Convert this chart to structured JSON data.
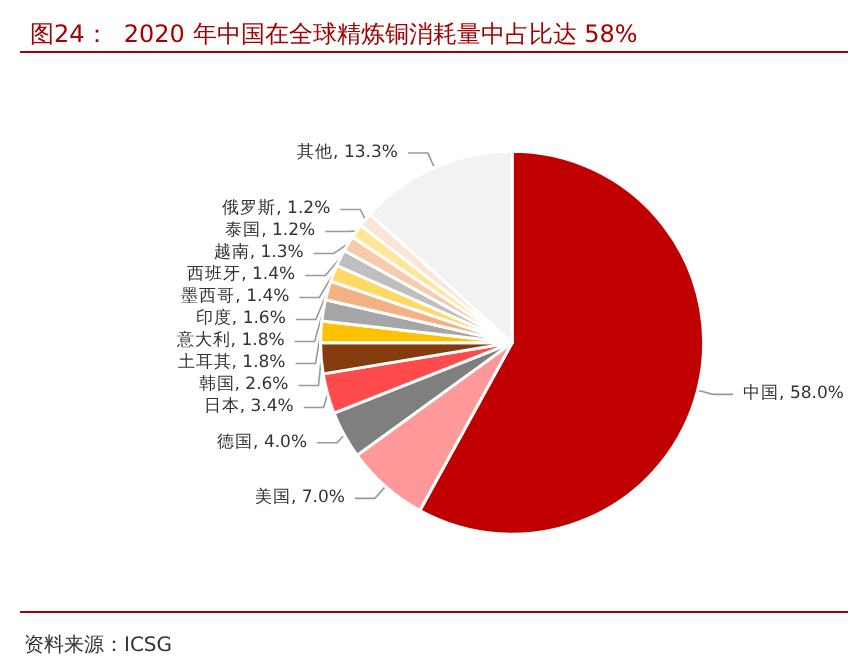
{
  "chart_data": {
    "type": "pie",
    "title": "图24：  2020 年中国在全球精炼铜消耗量中占比达 58%",
    "categories": [
      "中国",
      "美国",
      "德国",
      "日本",
      "韩国",
      "土耳其",
      "意大利",
      "印度",
      "墨西哥",
      "西班牙",
      "越南",
      "泰国",
      "俄罗斯",
      "其他"
    ],
    "values": [
      58.0,
      7.0,
      4.0,
      3.4,
      2.6,
      1.8,
      1.8,
      1.6,
      1.4,
      1.4,
      1.3,
      1.2,
      1.2,
      13.3
    ],
    "value_labels": [
      "58.0%",
      "7.0%",
      "4.0%",
      "3.4%",
      "2.6%",
      "1.8%",
      "1.8%",
      "1.6%",
      "1.4%",
      "1.4%",
      "1.3%",
      "1.2%",
      "1.2%",
      "13.3%"
    ],
    "colors": [
      "#c00000",
      "#ff9999",
      "#7f7f7f",
      "#ff4b4b",
      "#843c0c",
      "#ffc000",
      "#a6a6a6",
      "#f4b183",
      "#ffd966",
      "#bfbfbf",
      "#f8cbad",
      "#ffe699",
      "#fbe5d6",
      "#f2f2f2"
    ],
    "legend": false,
    "annotations": [
      "资料来源：ICSG"
    ]
  }
}
